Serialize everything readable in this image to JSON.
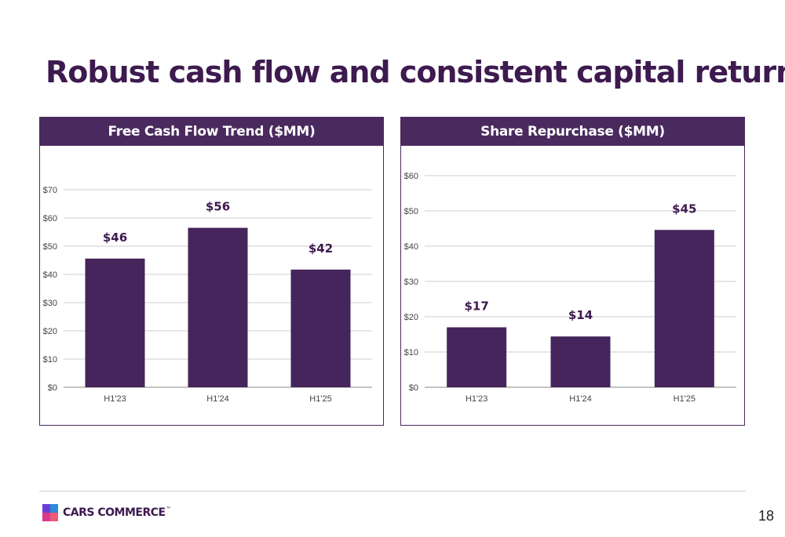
{
  "page": {
    "title": "Robust cash flow and consistent capital return",
    "page_number": "18",
    "colors": {
      "brand": "#3d1a4f",
      "header_bg": "#4a2a5e",
      "bar": "#45255b",
      "grid": "#cccccc"
    }
  },
  "logo": {
    "text": "CARS COMMERCE",
    "tm": "™",
    "icon": "cars-commerce-logo-icon",
    "colors": [
      "#6a3fd8",
      "#2b8cd9",
      "#d93a8c",
      "#f05a78"
    ]
  },
  "chart_data": [
    {
      "type": "bar",
      "title": "Free Cash Flow Trend ($MM)",
      "categories": [
        "H1'23",
        "H1'24",
        "H1'25"
      ],
      "values": [
        45.6,
        56.5,
        41.7
      ],
      "data_labels": [
        "$46",
        "$56",
        "$42"
      ],
      "ylim": [
        0,
        70
      ],
      "yticks": [
        0,
        10,
        20,
        30,
        40,
        50,
        60,
        70
      ],
      "ytick_labels": [
        "$0",
        "$10",
        "$20",
        "$30",
        "$40",
        "$50",
        "$60",
        "$70"
      ],
      "xlabel": "",
      "ylabel": "",
      "grid": true
    },
    {
      "type": "bar",
      "title": "Share Repurchase ($MM)",
      "categories": [
        "H1'23",
        "H1'24",
        "H1'25"
      ],
      "values": [
        17.0,
        14.4,
        44.6
      ],
      "data_labels": [
        "$17",
        "$14",
        "$45"
      ],
      "ylim": [
        0,
        60
      ],
      "yticks": [
        0,
        10,
        20,
        30,
        40,
        50,
        60
      ],
      "ytick_labels": [
        "$0",
        "$10",
        "$20",
        "$30",
        "$40",
        "$50",
        "$60"
      ],
      "xlabel": "",
      "ylabel": "",
      "grid": true
    }
  ]
}
